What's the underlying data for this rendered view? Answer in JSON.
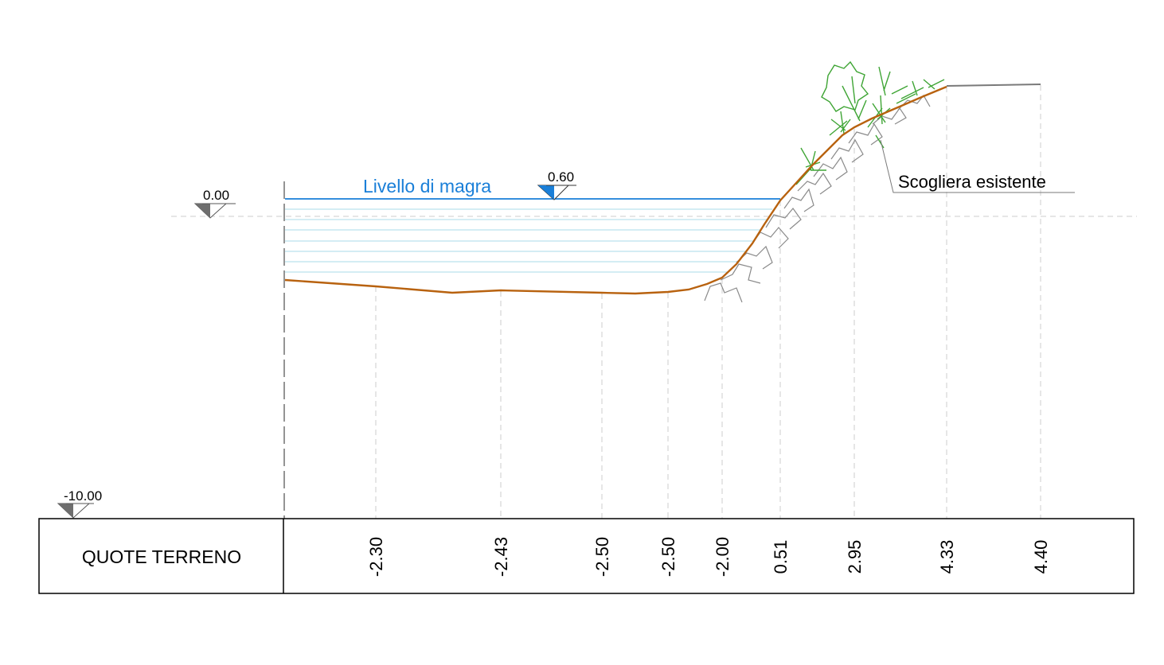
{
  "levels": {
    "zero": "0.00",
    "magra": "0.60",
    "magra_label": "Livello di magra",
    "base": "-10.00"
  },
  "annotation": {
    "scogliera": "Scogliera esistente"
  },
  "table": {
    "row_title": "QUOTE TERRENO",
    "elevations": [
      "-2.30",
      "-2.43",
      "-2.50",
      "-2.50",
      "-2.00",
      "0.51",
      "2.95",
      "4.33",
      "4.40"
    ]
  },
  "colors": {
    "terrain": "#b8620f",
    "water": "#1a7fd8",
    "water_fill_lines": "#a8dbe8",
    "vegetation": "#3fa535",
    "rocks": "#8a8a8a",
    "guides": "#d8d8d8",
    "level_marker": "#6e6e6e",
    "water_marker": "#1a7fd8"
  }
}
